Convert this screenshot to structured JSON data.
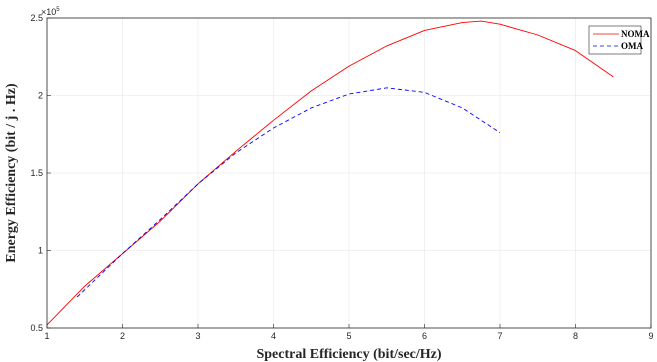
{
  "chart_data": {
    "type": "line",
    "title": "",
    "xlabel": "Spectral Efficiency (bit/sec/Hz)",
    "ylabel": "Energy Efficiency (bit / j . Hz)",
    "y_exponent_base": "×10",
    "y_exponent_power": "5",
    "xlim": [
      1,
      9
    ],
    "ylim": [
      0.5,
      2.5
    ],
    "x_ticks": [
      1,
      2,
      3,
      4,
      5,
      6,
      7,
      8,
      9
    ],
    "y_ticks": [
      0.5,
      1,
      1.5,
      2,
      2.5
    ],
    "y_tick_labels": [
      "0.5",
      "1",
      "1.5",
      "2",
      "2.5"
    ],
    "grid": true,
    "legend_position": "top-right",
    "series": [
      {
        "name": "NOMA",
        "style": "solid",
        "color": "#ff0000",
        "x": [
          1.0,
          1.5,
          2.0,
          2.5,
          3.0,
          3.5,
          4.0,
          4.5,
          5.0,
          5.5,
          6.0,
          6.5,
          6.75,
          7.0,
          7.5,
          8.0,
          8.5
        ],
        "y": [
          0.52,
          0.77,
          0.98,
          1.19,
          1.43,
          1.64,
          1.84,
          2.03,
          2.19,
          2.32,
          2.42,
          2.47,
          2.48,
          2.46,
          2.39,
          2.29,
          2.12
        ]
      },
      {
        "name": "OMA",
        "style": "dashed",
        "color": "#0000ff",
        "x": [
          1.4,
          1.7,
          2.0,
          2.5,
          3.0,
          3.5,
          4.0,
          4.5,
          5.0,
          5.5,
          6.0,
          6.5,
          7.0
        ],
        "y": [
          0.7,
          0.84,
          0.98,
          1.2,
          1.43,
          1.63,
          1.79,
          1.92,
          2.01,
          2.05,
          2.02,
          1.92,
          1.76
        ]
      }
    ]
  }
}
